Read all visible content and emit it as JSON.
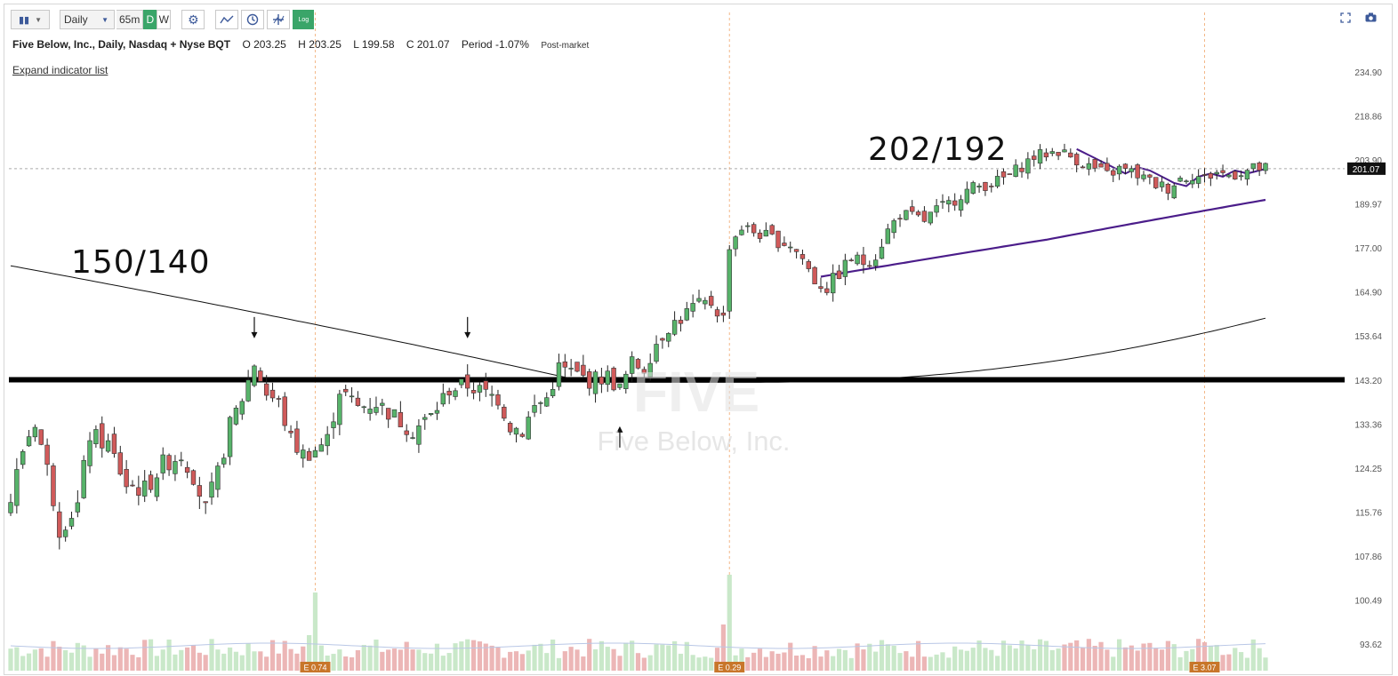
{
  "toolbar": {
    "chart_style": "candles",
    "period_select": "Daily",
    "interval_options": [
      "65m",
      "D",
      "W"
    ],
    "active_interval": "D",
    "buttons": [
      "settings-icon",
      "draw-icon",
      "clock-icon",
      "compare-icon"
    ],
    "log_label": "Log"
  },
  "top_right_icons": [
    "fullscreen-icon",
    "camera-icon"
  ],
  "header": {
    "title": "Five Below, Inc., Daily, Nasdaq + Nyse BQT",
    "open_label": "O",
    "open": "203.25",
    "high_label": "H",
    "high": "203.25",
    "low_label": "L",
    "low": "199.58",
    "close_label": "C",
    "close": "201.07",
    "period_label": "Period",
    "period_change": "-1.07%",
    "session": "Post-market"
  },
  "expand_link": "Expand indicator list",
  "annotations": {
    "left_note": "150/140",
    "right_note": "202/192"
  },
  "watermark": {
    "ticker": "FIVE",
    "name": "Five Below, Inc."
  },
  "colors": {
    "up": "#3d9a50",
    "up_fill": "#57b36a",
    "down": "#c84848",
    "down_fill": "#d05a5a",
    "ma_purple": "#4b1d8a",
    "ma_black": "#111111",
    "vol_up": "#c9e8c9",
    "vol_down": "#ecb6b6",
    "earnings": "#c8762a"
  },
  "chart_data": {
    "type": "candlestick",
    "y_axis_ticks": [
      "234.90",
      "218.86",
      "203.90",
      "189.97",
      "177.00",
      "164.90",
      "153.64",
      "143.20",
      "133.36",
      "124.25",
      "115.76",
      "107.86",
      "100.49",
      "93.62"
    ],
    "last_price_label": "201.07",
    "last_price": 201.07,
    "support_level": 143.2,
    "ylim": [
      93.62,
      234.9
    ],
    "y_scale": "log",
    "earnings_markers": [
      {
        "label": "E 0.74",
        "bar_index": 50
      },
      {
        "label": "E 0.29",
        "bar_index": 118
      },
      {
        "label": "E 3.07",
        "bar_index": 196
      }
    ],
    "arrows": [
      {
        "bar_index": 40,
        "direction": "down",
        "price": 153.5
      },
      {
        "bar_index": 75,
        "direction": "down",
        "price": 153.5
      },
      {
        "bar_index": 100,
        "direction": "up",
        "price": 132.5
      }
    ],
    "bars_count": 207
  }
}
